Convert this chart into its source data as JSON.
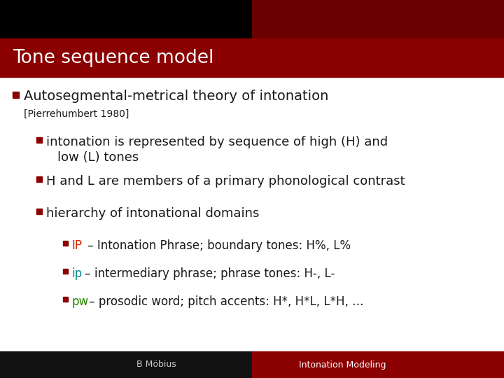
{
  "title": "Tone sequence model",
  "title_color": "#ffffff",
  "title_bg_color": "#8B0000",
  "header_black_color": "#000000",
  "header_darkred_color": "#6B0000",
  "slide_bg_color": "#ffffff",
  "footer_bg_left": "#111111",
  "footer_bg_right": "#8B0000",
  "footer_left": "B Möbius",
  "footer_right": "Intonation Modeling",
  "footer_left_color": "#cccccc",
  "footer_right_color": "#ffffff",
  "bullet_color": "#8B0000",
  "text_color": "#1a1a1a",
  "ip_color": "#cc2200",
  "ip_label": "IP",
  "ip_text": " – Intonation Phrase; boundary tones: H%, L%",
  "ip_lower_color": "#008888",
  "ip_lower_label": "ip",
  "ip_lower_text": " – intermediary phrase; phrase tones: H-, L-",
  "pw_color": "#228800",
  "pw_label": "pw",
  "pw_text": " – prosodic word; pitch accents: H*, H*L, L*H, …"
}
